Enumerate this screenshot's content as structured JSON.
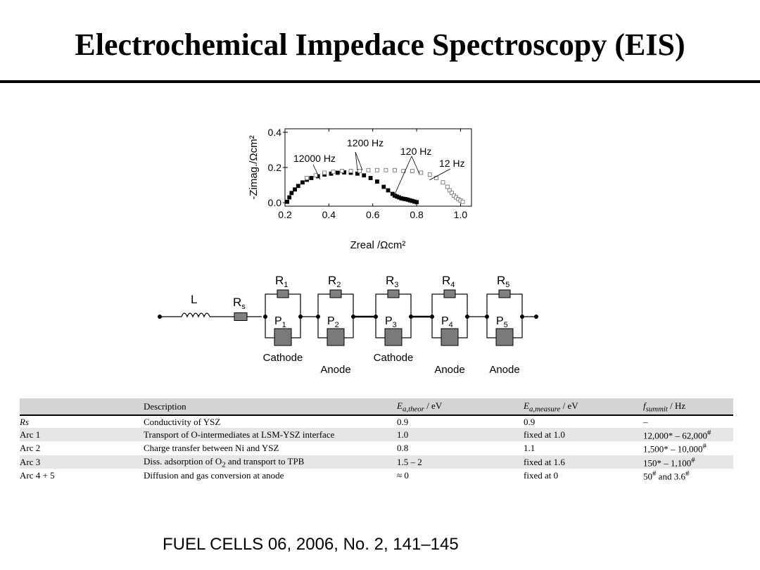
{
  "slide": {
    "title": "Electrochemical Impedace Spectroscopy (EIS)",
    "citation": "FUEL CELLS 06, 2006, No. 2, 141–145"
  },
  "chart_data": {
    "type": "scatter",
    "xlabel": "Zreal /Ωcm²",
    "ylabel": "-Zimag./Ωcm²",
    "xlim": [
      0.2,
      1.05
    ],
    "ylim": [
      -0.02,
      0.42
    ],
    "xticks": [
      "0.2",
      "0.4",
      "0.6",
      "0.8",
      "1.0"
    ],
    "yticks": [
      "0.0",
      "0.2",
      "0.4"
    ],
    "annotations": [
      "12000 Hz",
      "1200 Hz",
      "120 Hz",
      "12 Hz"
    ],
    "series": [
      {
        "marker": "filled-square",
        "x": [
          0.21,
          0.22,
          0.23,
          0.245,
          0.26,
          0.28,
          0.3,
          0.32,
          0.35,
          0.38,
          0.41,
          0.44,
          0.47,
          0.5,
          0.53,
          0.56,
          0.59,
          0.62,
          0.65,
          0.67,
          0.69,
          0.7,
          0.71,
          0.72,
          0.73,
          0.74,
          0.75,
          0.76,
          0.77,
          0.78,
          0.79,
          0.8
        ],
        "y": [
          0.005,
          0.03,
          0.055,
          0.075,
          0.095,
          0.115,
          0.13,
          0.14,
          0.15,
          0.16,
          0.165,
          0.17,
          0.172,
          0.17,
          0.165,
          0.155,
          0.14,
          0.12,
          0.09,
          0.07,
          0.05,
          0.04,
          0.035,
          0.03,
          0.025,
          0.022,
          0.02,
          0.017,
          0.013,
          0.01,
          0.006,
          0.003
        ]
      },
      {
        "marker": "open-square",
        "x": [
          0.3,
          0.34,
          0.38,
          0.42,
          0.46,
          0.5,
          0.54,
          0.58,
          0.62,
          0.66,
          0.7,
          0.74,
          0.78,
          0.82,
          0.86,
          0.89,
          0.92,
          0.94,
          0.95,
          0.96,
          0.97,
          0.98,
          0.99,
          1.0,
          1.01
        ],
        "y": [
          0.14,
          0.155,
          0.17,
          0.175,
          0.18,
          0.18,
          0.18,
          0.185,
          0.185,
          0.185,
          0.185,
          0.18,
          0.18,
          0.17,
          0.16,
          0.14,
          0.115,
          0.09,
          0.07,
          0.055,
          0.04,
          0.03,
          0.02,
          0.012,
          0.005
        ]
      }
    ]
  },
  "circuit": {
    "inductor_label": "L",
    "series_resistor_label": "R",
    "series_resistor_sub": "s",
    "elements": [
      {
        "r": "R",
        "r_sub": "1",
        "p": "P",
        "p_sub": "1",
        "caption": "Cathode"
      },
      {
        "r": "R",
        "r_sub": "2",
        "p": "P",
        "p_sub": "2",
        "caption": "Anode"
      },
      {
        "r": "R",
        "r_sub": "3",
        "p": "P",
        "p_sub": "3",
        "caption": "Cathode"
      },
      {
        "r": "R",
        "r_sub": "4",
        "p": "P",
        "p_sub": "4",
        "caption": "Anode"
      },
      {
        "r": "R",
        "r_sub": "5",
        "p": "P",
        "p_sub": "5",
        "caption": "Anode"
      }
    ]
  },
  "table": {
    "headers": {
      "c0": "",
      "c1": "Description",
      "c2_sym": "E",
      "c2_sub": "a,theor",
      "c2_unit": " / eV",
      "c3_sym": "E",
      "c3_sub": "a,measure",
      "c3_unit": " / eV",
      "c4_sym": "f",
      "c4_sub": "summit",
      "c4_unit": " / Hz"
    },
    "rows": [
      {
        "name": "Rs",
        "desc": "Conductivity of YSZ",
        "etheor": "0.9",
        "emeas": "0.9",
        "fpre": "–",
        "fmid": "",
        "fpost": ""
      },
      {
        "name": "Arc 1",
        "desc": "Transport of O-intermediates at LSM-YSZ interface",
        "etheor": "1.0",
        "emeas": "fixed at 1.0",
        "fpre": "12,000* – 62,000",
        "fmid": "#",
        "fpost": ""
      },
      {
        "name": "Arc 2",
        "desc": "Charge transfer between Ni and YSZ",
        "etheor": "0.8",
        "emeas": "1.1",
        "fpre": "1,500* – 10,000",
        "fmid": "#",
        "fpost": ""
      },
      {
        "name": "Arc 3",
        "desc_pre": "Diss. adsorption of O",
        "desc_sub": "2",
        "desc_post": " and transport to TPB",
        "etheor": "1.5 – 2",
        "emeas": "fixed at 1.6",
        "fpre": "150* – 1,100",
        "fmid": "#",
        "fpost": ""
      },
      {
        "name": "Arc 4 + 5",
        "desc": "Diffusion and gas conversion at anode",
        "etheor": "≈ 0",
        "emeas": "fixed at 0",
        "fpre": "50",
        "fmid": "#",
        "fpost": " and 3.6",
        "fend": "#"
      }
    ]
  }
}
